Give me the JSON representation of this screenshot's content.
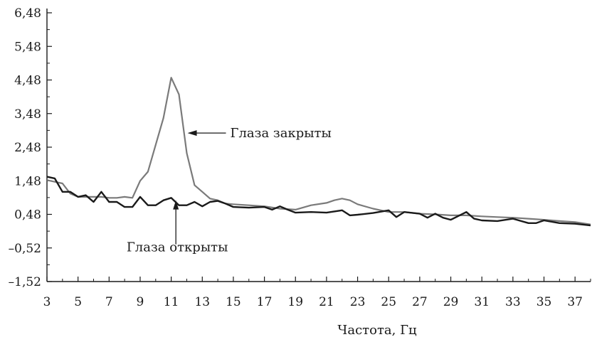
{
  "chart_data": {
    "type": "line",
    "title": "",
    "xlabel": "Частота, Гц",
    "ylabel": "",
    "xlim": [
      3,
      38
    ],
    "ylim": [
      -1.52,
      6.48
    ],
    "x_ticks": [
      3,
      5,
      7,
      9,
      11,
      13,
      15,
      17,
      19,
      21,
      23,
      25,
      27,
      29,
      31,
      33,
      35,
      37
    ],
    "x_tick_labels": [
      "3",
      "5",
      "7",
      "9",
      "11",
      "13",
      "15",
      "17",
      "19",
      "21",
      "23",
      "25",
      "27",
      "29",
      "31",
      "33",
      "35",
      "37"
    ],
    "y_ticks": [
      -1.52,
      -0.52,
      0.48,
      1.48,
      2.48,
      3.48,
      4.48,
      5.48,
      6.48
    ],
    "y_tick_labels": [
      "–1,52",
      "–0,52",
      "0,48",
      "1,48",
      "2,48",
      "3,48",
      "4,48",
      "5,48",
      "6,48"
    ],
    "grid": false,
    "legend": "none",
    "series": [
      {
        "name": "Глаза закрыты",
        "color": "#7a7a7a",
        "x": [
          3,
          3.5,
          4,
          4.5,
          5,
          5.5,
          6,
          6.5,
          7,
          7.5,
          8,
          8.5,
          9,
          9.5,
          10,
          10.5,
          11,
          11.5,
          12,
          12.5,
          13,
          13.5,
          14,
          14.5,
          15,
          16,
          17,
          18,
          19,
          20,
          21,
          21.5,
          22,
          22.5,
          23,
          24,
          25,
          26,
          27,
          28,
          29,
          30,
          31,
          32,
          33,
          34,
          35,
          36,
          37,
          38
        ],
        "values": [
          1.5,
          1.45,
          1.4,
          1.1,
          1.0,
          1.0,
          1.0,
          1.0,
          0.97,
          0.97,
          1.0,
          0.97,
          1.48,
          1.75,
          2.55,
          3.35,
          4.55,
          4.05,
          2.3,
          1.35,
          1.15,
          0.95,
          0.9,
          0.8,
          0.78,
          0.75,
          0.72,
          0.65,
          0.62,
          0.75,
          0.82,
          0.9,
          0.95,
          0.9,
          0.78,
          0.65,
          0.55,
          0.55,
          0.5,
          0.48,
          0.45,
          0.45,
          0.42,
          0.4,
          0.38,
          0.35,
          0.32,
          0.28,
          0.25,
          0.18
        ]
      },
      {
        "name": "Глаза открыты",
        "color": "#1a1a1a",
        "x": [
          3,
          3.5,
          4,
          4.5,
          5,
          5.5,
          6,
          6.5,
          7,
          7.5,
          8,
          8.5,
          9,
          9.5,
          10,
          10.5,
          11,
          11.5,
          12,
          12.5,
          13,
          13.5,
          14,
          14.5,
          15,
          16,
          17,
          17.5,
          18,
          18.5,
          19,
          20,
          21,
          22,
          22.5,
          23,
          24,
          25,
          25.5,
          26,
          27,
          27.5,
          28,
          28.5,
          29,
          30,
          30.5,
          31,
          32,
          33,
          34,
          34.5,
          35,
          36,
          37,
          38
        ],
        "values": [
          1.6,
          1.55,
          1.15,
          1.15,
          1.0,
          1.05,
          0.85,
          1.15,
          0.85,
          0.85,
          0.7,
          0.7,
          1.0,
          0.75,
          0.75,
          0.9,
          0.97,
          0.75,
          0.75,
          0.85,
          0.72,
          0.85,
          0.88,
          0.8,
          0.7,
          0.68,
          0.7,
          0.62,
          0.72,
          0.62,
          0.53,
          0.55,
          0.53,
          0.6,
          0.45,
          0.47,
          0.52,
          0.6,
          0.4,
          0.55,
          0.5,
          0.38,
          0.5,
          0.38,
          0.32,
          0.55,
          0.35,
          0.3,
          0.28,
          0.35,
          0.22,
          0.22,
          0.3,
          0.22,
          0.2,
          0.15
        ]
      }
    ],
    "annotations": [
      {
        "text": "Глаза закрыты",
        "target_series": "Глаза закрыты",
        "point": [
          12.05,
          2.9
        ],
        "arrow": "left"
      },
      {
        "text": "Глаза открыты",
        "target_series": "Глаза открыты",
        "point": [
          11.3,
          0.9
        ],
        "arrow": "up"
      }
    ]
  }
}
